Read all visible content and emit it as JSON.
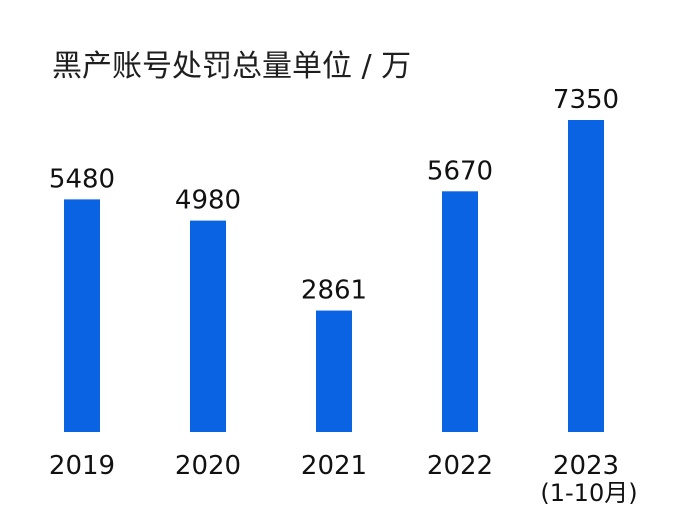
{
  "chart_data": {
    "type": "bar",
    "title": "黑产账号处罚总量单位 / 万",
    "categories": [
      "2019",
      "2020",
      "2021",
      "2022",
      "2023"
    ],
    "category_sublabels": [
      "",
      "",
      "",
      "",
      "(1-10月)"
    ],
    "values": [
      5480,
      4980,
      2861,
      5670,
      7350
    ],
    "value_labels": [
      "5480",
      "4980",
      "2861",
      "5670",
      "7350"
    ],
    "xlabel": "",
    "ylabel": "",
    "ylim": [
      0,
      7350
    ],
    "grid": false,
    "legend": "none",
    "colors": {
      "bar": "#0a63e3",
      "text": "#111111",
      "background": "#ffffff"
    }
  }
}
